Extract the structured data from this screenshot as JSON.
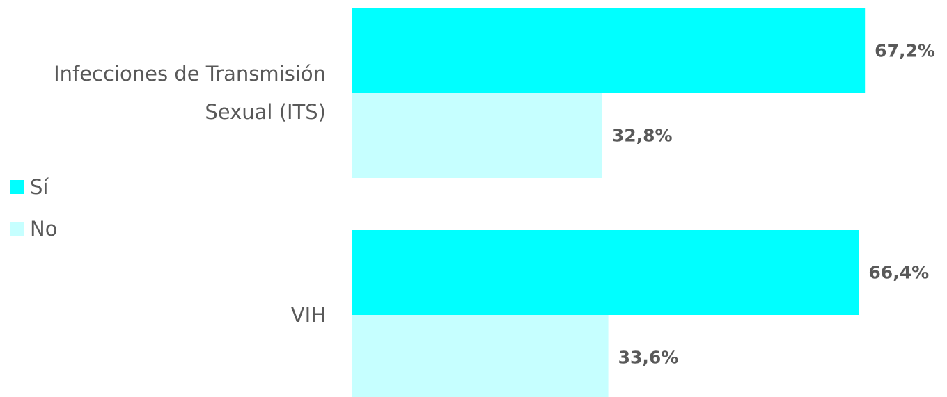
{
  "chart_data": {
    "type": "bar",
    "orientation": "horizontal",
    "categories": [
      "Infecciones de Transmisión Sexual (ITS)",
      "VIH"
    ],
    "series": [
      {
        "name": "Sí",
        "color": "#00ffff",
        "values": [
          67.2,
          66.4
        ],
        "value_labels": [
          "67,2%",
          "66,4%"
        ]
      },
      {
        "name": "No",
        "color": "#c6ffff",
        "values": [
          32.8,
          33.6
        ],
        "value_labels": [
          "32,8%",
          "33,6%"
        ]
      }
    ],
    "legend": "left"
  }
}
